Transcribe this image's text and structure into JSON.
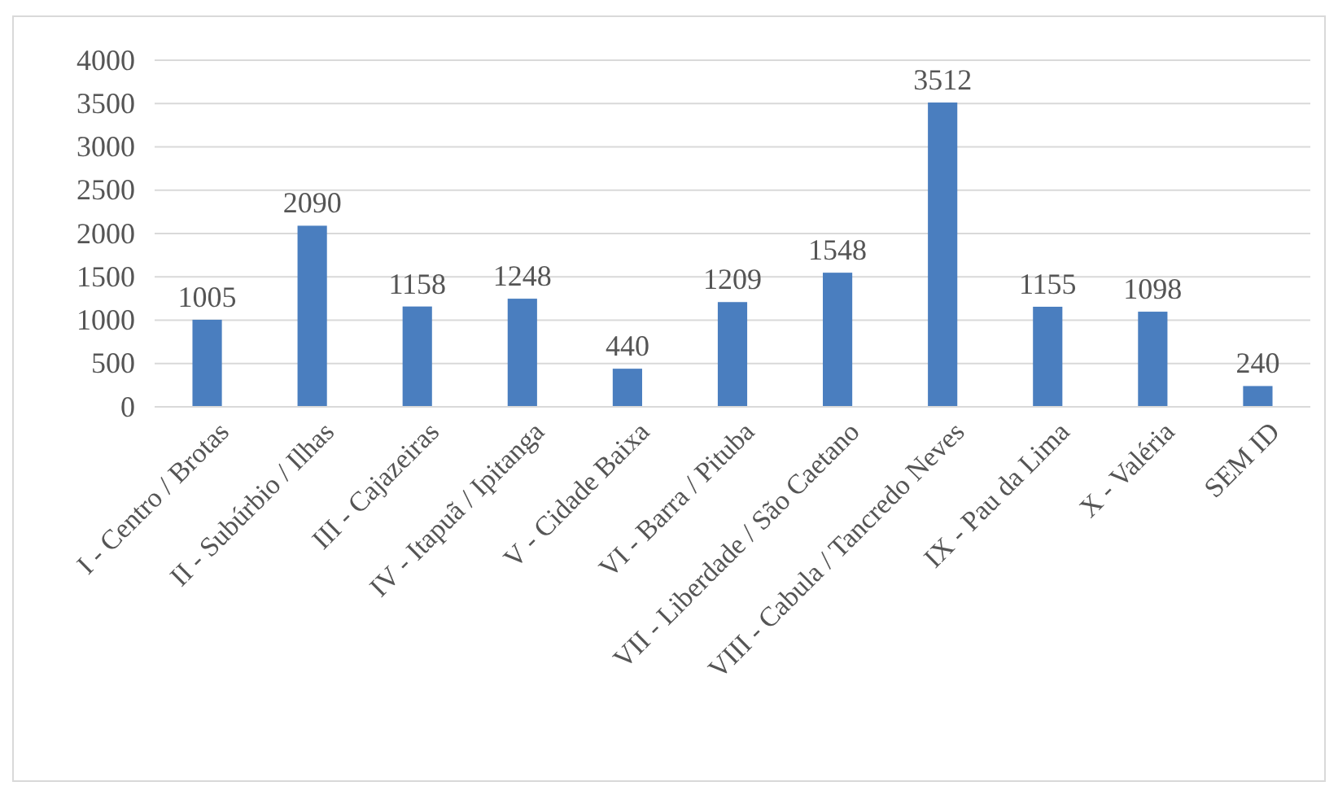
{
  "chart_data": {
    "type": "bar",
    "categories": [
      "I - Centro / Brotas",
      "II - Subúrbio / Ilhas",
      "III - Cajazeiras",
      "IV - Itapuã / Ipitanga",
      "V - Cidade Baixa",
      "VI - Barra / Pituba",
      "VII - Liberdade / São Caetano",
      "VIII - Cabula / Tancredo Neves",
      "IX - Pau da Lima",
      "X - Valéria",
      "SEM ID"
    ],
    "values": [
      1005,
      2090,
      1158,
      1248,
      440,
      1209,
      1548,
      3512,
      1155,
      1098,
      240
    ],
    "color": "#4a7ebf",
    "ylim": [
      0,
      4000
    ],
    "yticks": [
      0,
      500,
      1000,
      1500,
      2000,
      2500,
      3000,
      3500,
      4000
    ],
    "grid": "y",
    "data_labels": true
  }
}
